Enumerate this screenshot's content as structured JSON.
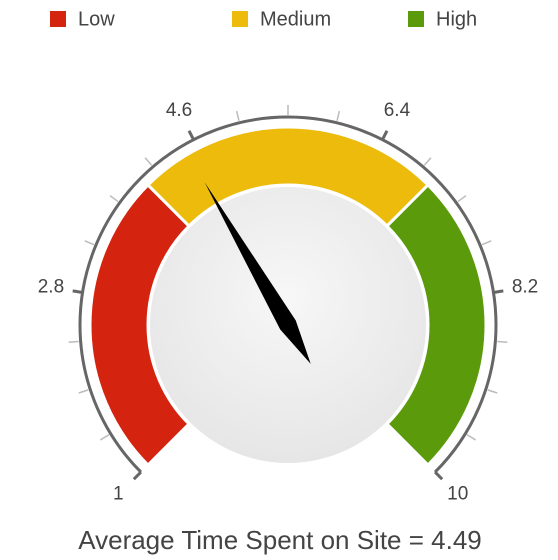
{
  "chart_data": {
    "type": "gauge",
    "title": "Average Time Spent on Site = 4.49",
    "value": 4.49,
    "needle_color": "#000000",
    "range": [
      1,
      10
    ],
    "ticks": [
      1,
      2.8,
      4.6,
      6.4,
      8.2,
      10
    ],
    "minor_ticks": 4,
    "bands": [
      {
        "name": "Low",
        "color": "#d4230f",
        "from": 1,
        "to": 4
      },
      {
        "name": "Medium",
        "color": "#ecbb0c",
        "from": 4,
        "to": 7
      },
      {
        "name": "High",
        "color": "#5b9a0b",
        "from": 7,
        "to": 10
      }
    ]
  }
}
